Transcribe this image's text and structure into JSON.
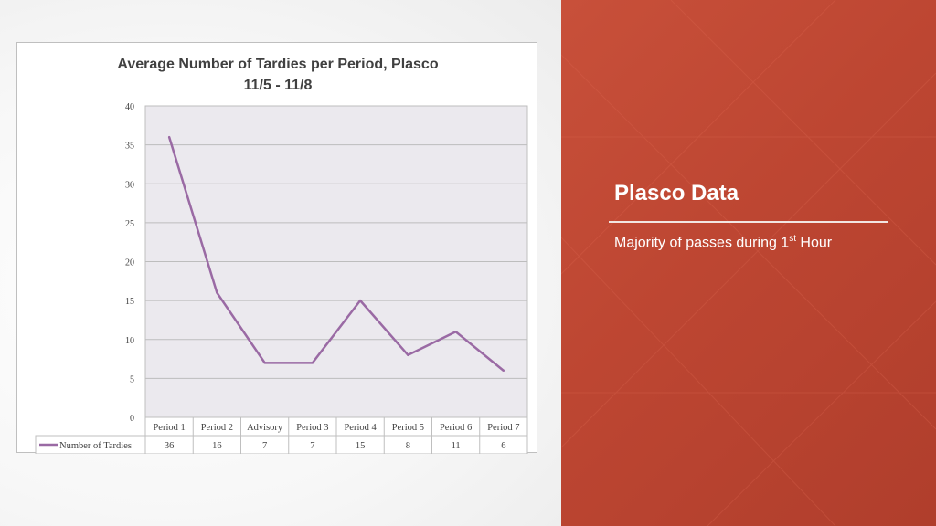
{
  "slide": {
    "title": "Plasco Data",
    "subtitle_text": "Majority of passes during 1",
    "subtitle_sup": "st",
    "subtitle_tail": " Hour",
    "accent_color": "#bd4632"
  },
  "chart_data": {
    "type": "line",
    "title_line1": "Average Number of Tardies per Period, Plasco",
    "title_line2": "11/5 - 11/8",
    "categories": [
      "Period 1",
      "Period 2",
      "Advisory",
      "Period 3",
      "Period 4",
      "Period 5",
      "Period 6",
      "Period 7"
    ],
    "series": [
      {
        "name": "Number of Tardies",
        "values": [
          36,
          16,
          7,
          7,
          15,
          8,
          11,
          6
        ],
        "color": "#9a6aa4"
      }
    ],
    "ylim": [
      0,
      40
    ],
    "yticks": [
      0,
      5,
      10,
      15,
      20,
      25,
      30,
      35,
      40
    ],
    "grid": true,
    "data_table": true,
    "plot_background": "#ebe9ee"
  }
}
